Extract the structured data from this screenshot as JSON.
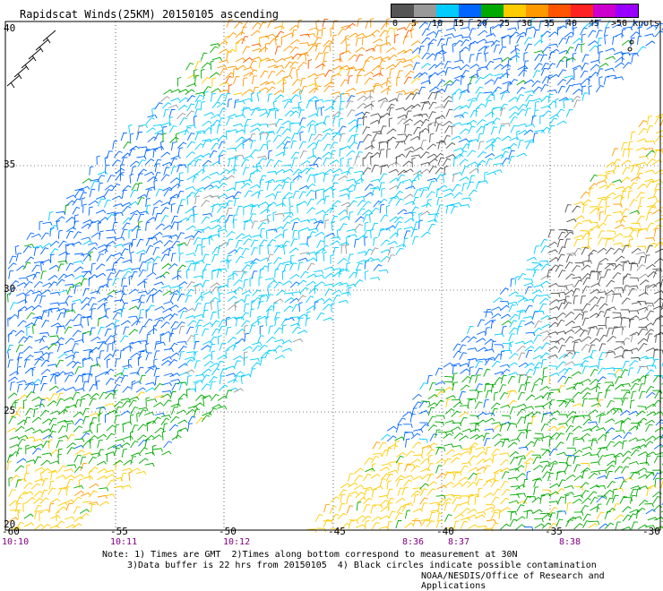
{
  "title": "Rapidscat Winds(25KM) 20150105 ascending",
  "legend": {
    "labels": [
      "0",
      "5",
      "10",
      "15",
      "20",
      "25",
      "30",
      "35",
      "40",
      "45",
      ">50 knots"
    ],
    "colors": [
      "#555555",
      "#999999",
      "#00ccff",
      "#0066ff",
      "#00aa00",
      "#ffcc00",
      "#ff9900",
      "#ff5500",
      "#ff2222",
      "#cc00cc",
      "#9900ff",
      "#4400aa"
    ]
  },
  "axes": {
    "x_labels": [
      "-60",
      "-55",
      "-50",
      "-45",
      "-40",
      "-35",
      "-30"
    ],
    "y_labels": [
      "40",
      "35",
      "30",
      "25",
      "20"
    ]
  },
  "times": [
    "10:10",
    "10:11",
    "10:12",
    "8:36",
    "8:37",
    "8:38"
  ],
  "notes": {
    "line1": "Note: 1) Times are GMT  2)Times along bottom correspond to measurement at 30N",
    "line2": "3)Data buffer is 22 hrs from 20150105  4) Black circles indicate possible contamination"
  },
  "credit": "NOAA/NESDIS/Office of Research and Applications"
}
